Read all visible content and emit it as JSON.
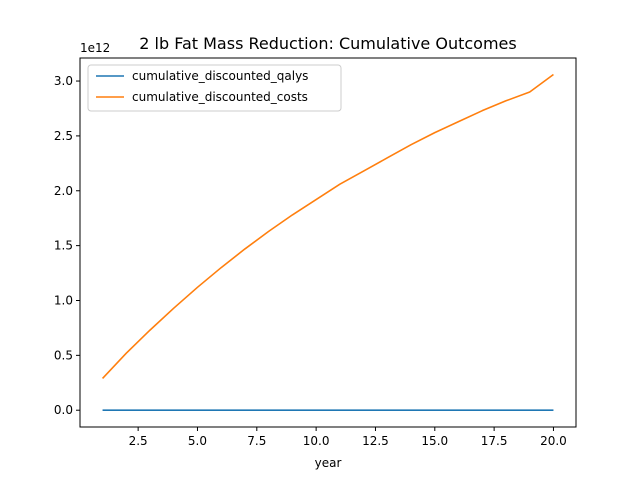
{
  "chart_data": {
    "type": "line",
    "title": "2 lb Fat Mass Reduction: Cumulative Outcomes",
    "xlabel": "year",
    "ylabel": "",
    "y_offset_label": "1e12",
    "xlim": [
      0.05,
      20.95
    ],
    "ylim": [
      -0.153,
      3.21
    ],
    "x_ticks": [
      2.5,
      5.0,
      7.5,
      10.0,
      12.5,
      15.0,
      17.5,
      20.0
    ],
    "x_tick_labels": [
      "2.5",
      "5.0",
      "7.5",
      "10.0",
      "12.5",
      "15.0",
      "17.5",
      "20.0"
    ],
    "y_ticks": [
      0.0,
      0.5,
      1.0,
      1.5,
      2.0,
      2.5,
      3.0
    ],
    "y_tick_labels": [
      "0.0",
      "0.5",
      "1.0",
      "1.5",
      "2.0",
      "2.5",
      "3.0"
    ],
    "grid": false,
    "legend_position": "upper-left",
    "x": [
      1,
      2,
      3,
      4,
      5,
      6,
      7,
      8,
      9,
      10,
      11,
      12,
      13,
      14,
      15,
      16,
      17,
      18,
      19,
      20
    ],
    "series": [
      {
        "name": "cumulative_discounted_qalys",
        "color": "#1f77b4",
        "values": [
          0,
          0,
          0,
          0,
          0,
          0,
          0,
          0,
          0,
          0,
          0,
          0,
          0,
          0,
          0,
          0,
          0,
          0,
          0,
          0
        ]
      },
      {
        "name": "cumulative_discounted_costs",
        "color": "#ff7f0e",
        "values": [
          0.29,
          0.52,
          0.73,
          0.93,
          1.12,
          1.3,
          1.47,
          1.63,
          1.78,
          1.92,
          2.06,
          2.18,
          2.3,
          2.42,
          2.53,
          2.63,
          2.73,
          2.82,
          2.9,
          3.06
        ]
      }
    ]
  }
}
